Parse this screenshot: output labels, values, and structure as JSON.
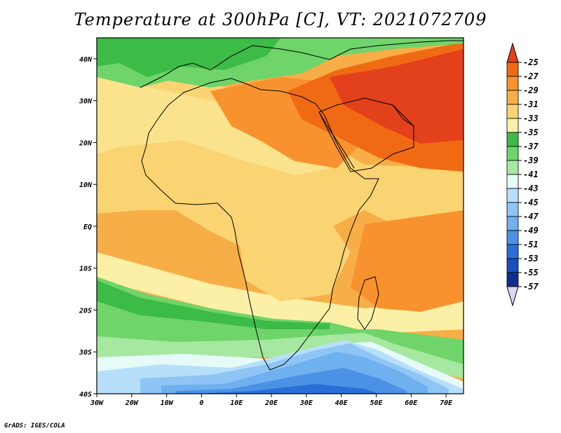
{
  "title": "Temperature at 300hPa [C], VT: 2021072709",
  "credit": "GrADS: IGES/COLA",
  "map": {
    "lon_range": [
      -30,
      75
    ],
    "lat_range": [
      -40,
      45
    ],
    "lon_ticks": [
      "30W",
      "20W",
      "10W",
      "0",
      "10E",
      "20E",
      "30E",
      "40E",
      "50E",
      "60E",
      "70E"
    ],
    "lat_ticks": [
      "40S",
      "30S",
      "20S",
      "10S",
      "EQ",
      "10N",
      "20N",
      "30N",
      "40N"
    ]
  },
  "colorbar": {
    "labels": [
      "-25",
      "-27",
      "-29",
      "-31",
      "-33",
      "-35",
      "-37",
      "-39",
      "-41",
      "-43",
      "-45",
      "-47",
      "-49",
      "-51",
      "-53",
      "-55",
      "-57"
    ],
    "colors": [
      "#e3401c",
      "#f06a14",
      "#f7922e",
      "#f7ae47",
      "#fad372",
      "#fbf0a6",
      "#3cbb46",
      "#6fd46a",
      "#a6e8a0",
      "#e6fbf8",
      "#b7dffa",
      "#8ec5f5",
      "#6fb0ef",
      "#4b91e6",
      "#2a6fd8",
      "#1a4fbb",
      "#0f2f8f",
      "#0b1a70",
      "#dcd6f5"
    ]
  }
}
